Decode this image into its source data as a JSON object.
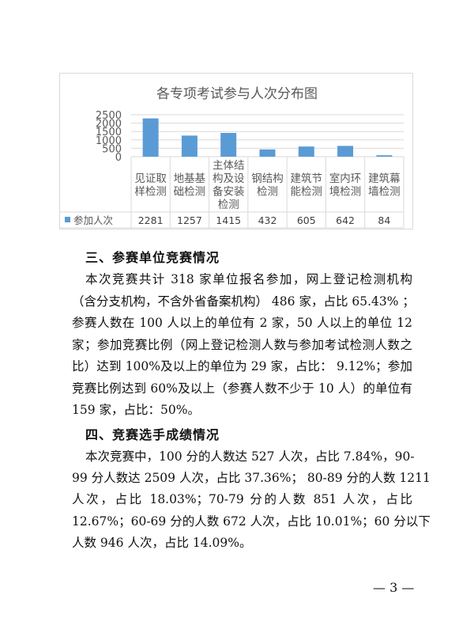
{
  "chart_data": {
    "type": "bar",
    "title": "各专项考试参与人次分布图",
    "categories": [
      "见证取样检测",
      "地基基础检测",
      "主体结构及设备安装检测",
      "钢结构检测",
      "建筑节能检测",
      "室内环境检测",
      "建筑幕墙检测"
    ],
    "category_lines": [
      [
        "见证取",
        "样检测"
      ],
      [
        "地基基",
        "础检测"
      ],
      [
        "主体结",
        "构及设",
        "备安装",
        "检测"
      ],
      [
        "钢结构",
        "检测"
      ],
      [
        "建筑节",
        "能检测"
      ],
      [
        "室内环",
        "境检测"
      ],
      [
        "建筑幕",
        "墙检测"
      ]
    ],
    "series": [
      {
        "name": "参加人次",
        "values": [
          2281,
          1257,
          1415,
          432,
          605,
          642,
          84
        ]
      }
    ],
    "value_labels": [
      "2281",
      "1257",
      "1415",
      "432",
      "605",
      "642",
      "84"
    ],
    "yticks": [
      "0",
      "500",
      "1000",
      "1500",
      "2000",
      "2500"
    ],
    "ylim": [
      0,
      2500
    ],
    "grid": true,
    "legend": "data-table-left",
    "color": "#5b9bd5"
  },
  "section3": {
    "heading": "三、参赛单位竞赛情况",
    "lines": [
      "本次竞赛共计 318 家单位报名参加，网上登记检测机构",
      "（含分支机构，不含外省备案机构） 486 家，占比 65.43% ；",
      "参赛人数在 100 人以上的单位有 2 家，50 人以上的单位 12",
      "家；参加竞赛比例（网上登记检测人数与参加考试检测人数之",
      "比）达到 100%及以上的单位为 29 家，占比： 9.12%；参加",
      "竞赛比例达到 60%及以上（参赛人数不少于 10 人）的单位有",
      "159 家，占比：50%。"
    ]
  },
  "section4": {
    "heading": "四、竞赛选手成绩情况",
    "lines": [
      "本次竞赛中，100 分的人数达 527 人次，占比 7.84%，90-",
      "99 分人数达 2509 人次，占比 37.36%； 80-89 分的人数 1211",
      "人次，占比 18.03%；70-79 分的人数 851 人次，占比",
      "12.67%；60-69 分的人数 672 人次，占比 10.01%；60 分以下",
      "人数 946 人次，占比 14.09%。"
    ]
  },
  "page_number": "— 3 —"
}
